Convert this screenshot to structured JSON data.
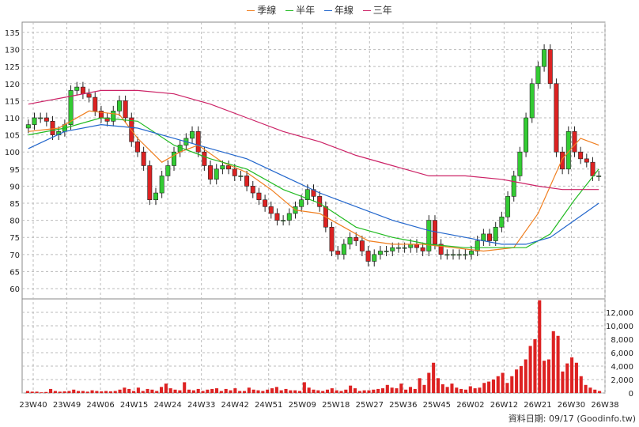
{
  "legend": [
    {
      "label": "季線",
      "color": "#f07f20"
    },
    {
      "label": "半年",
      "color": "#22bb22"
    },
    {
      "label": "年線",
      "color": "#2266cc"
    },
    {
      "label": "三年",
      "color": "#cc2266"
    }
  ],
  "footer": {
    "date_label": "資料日期: 09/17",
    "source": "(Goodinfo.tw)"
  },
  "chart_data": [
    {
      "type": "line",
      "title": "",
      "x_ticks": [
        "23W40",
        "23W49",
        "24W06",
        "24W15",
        "24W24",
        "24W33",
        "24W42",
        "24W51",
        "25W09",
        "25W18",
        "25W27",
        "25W36",
        "25W45",
        "26W02",
        "26W12",
        "26W21",
        "26W30",
        "26W38"
      ],
      "y_ticks": [
        60,
        65,
        70,
        75,
        80,
        85,
        90,
        95,
        100,
        105,
        110,
        115,
        120,
        125,
        130,
        135
      ],
      "ylim": [
        57,
        138
      ],
      "grid": true,
      "candle_close": [
        108,
        110,
        110,
        109,
        105,
        106,
        108,
        118,
        119,
        117,
        116,
        112,
        110,
        109,
        112,
        115,
        110,
        103,
        100,
        96,
        86,
        88,
        93,
        96,
        100,
        102,
        104,
        106,
        100,
        96,
        92,
        95,
        96,
        95,
        93,
        93,
        90,
        88,
        86,
        84,
        82,
        80,
        80,
        82,
        84,
        86,
        89,
        87,
        84,
        78,
        71,
        70,
        73,
        75,
        74,
        71,
        68,
        70,
        71,
        71,
        72,
        72,
        72,
        73,
        72,
        71,
        80,
        73,
        70,
        70,
        70,
        70,
        70,
        71,
        74,
        76,
        74,
        78,
        81,
        87,
        93,
        100,
        110,
        120,
        125,
        130,
        120,
        100,
        95,
        106,
        100,
        98,
        97,
        93,
        93
      ],
      "series": [
        {
          "name": "季線",
          "color": "#f07f20",
          "points": [
            [
              0,
              106
            ],
            [
              5,
              107
            ],
            [
              10,
              112
            ],
            [
              15,
              111
            ],
            [
              18,
              104
            ],
            [
              22,
              97
            ],
            [
              25,
              100
            ],
            [
              28,
              102
            ],
            [
              32,
              97
            ],
            [
              36,
              94
            ],
            [
              40,
              89
            ],
            [
              44,
              83
            ],
            [
              48,
              82
            ],
            [
              52,
              78
            ],
            [
              56,
              74
            ],
            [
              60,
              73
            ],
            [
              65,
              73
            ],
            [
              70,
              72
            ],
            [
              75,
              71
            ],
            [
              80,
              72
            ],
            [
              84,
              82
            ],
            [
              88,
              98
            ],
            [
              91,
              104
            ],
            [
              94,
              102
            ]
          ]
        },
        {
          "name": "半年",
          "color": "#22bb22",
          "points": [
            [
              0,
              105
            ],
            [
              6,
              107
            ],
            [
              12,
              110
            ],
            [
              18,
              109
            ],
            [
              24,
              102
            ],
            [
              30,
              98
            ],
            [
              36,
              95
            ],
            [
              42,
              89
            ],
            [
              48,
              85
            ],
            [
              54,
              78
            ],
            [
              60,
              75
            ],
            [
              66,
              73
            ],
            [
              72,
              72
            ],
            [
              78,
              72
            ],
            [
              82,
              72
            ],
            [
              86,
              76
            ],
            [
              90,
              86
            ],
            [
              94,
              95
            ]
          ]
        },
        {
          "name": "年線",
          "color": "#2266cc",
          "points": [
            [
              0,
              101
            ],
            [
              6,
              106
            ],
            [
              12,
              108
            ],
            [
              18,
              107
            ],
            [
              24,
              104
            ],
            [
              30,
              101
            ],
            [
              36,
              98
            ],
            [
              42,
              93
            ],
            [
              48,
              88
            ],
            [
              54,
              84
            ],
            [
              60,
              80
            ],
            [
              66,
              77
            ],
            [
              72,
              75
            ],
            [
              78,
              73
            ],
            [
              82,
              73
            ],
            [
              86,
              75
            ],
            [
              90,
              80
            ],
            [
              94,
              85
            ]
          ]
        },
        {
          "name": "三年",
          "color": "#cc2266",
          "points": [
            [
              0,
              114
            ],
            [
              6,
              116
            ],
            [
              12,
              118
            ],
            [
              18,
              118
            ],
            [
              24,
              117
            ],
            [
              30,
              114
            ],
            [
              36,
              110
            ],
            [
              42,
              106
            ],
            [
              48,
              103
            ],
            [
              54,
              99
            ],
            [
              60,
              96
            ],
            [
              66,
              93
            ],
            [
              72,
              93
            ],
            [
              78,
              92
            ],
            [
              84,
              90
            ],
            [
              88,
              89
            ],
            [
              94,
              89
            ]
          ]
        }
      ]
    },
    {
      "type": "bar",
      "title": "",
      "y_ticks": [
        0,
        2000,
        4000,
        6000,
        8000,
        10000,
        12000
      ],
      "y_tick_labels": [
        "0",
        "2,000",
        "4,000",
        "6,000",
        "8,000",
        "10,000",
        "12,000"
      ],
      "ylim": [
        0,
        14000
      ],
      "color": "#dd2222",
      "values": [
        300,
        200,
        200,
        100,
        150,
        600,
        300,
        200,
        250,
        300,
        500,
        300,
        300,
        200,
        400,
        300,
        250,
        300,
        250,
        300,
        500,
        800,
        600,
        300,
        800,
        300,
        600,
        500,
        300,
        900,
        1400,
        700,
        500,
        400,
        1600,
        500,
        400,
        600,
        300,
        500,
        600,
        700,
        300,
        600,
        400,
        700,
        300,
        300,
        800,
        500,
        400,
        300,
        500,
        700,
        900,
        400,
        600,
        400,
        400,
        300,
        1600,
        800,
        500,
        400,
        300,
        500,
        700,
        400,
        300,
        500,
        1100,
        700,
        300,
        400,
        400,
        500,
        600,
        700,
        1200,
        800,
        700,
        1400,
        500,
        900,
        600,
        2200,
        1200,
        3000,
        4500,
        2200,
        1300,
        900,
        1400,
        800,
        600,
        500,
        1000,
        700,
        800,
        1500,
        1700,
        2000,
        2500,
        3000,
        1500,
        2500,
        3500,
        4000,
        5000,
        7000,
        8000,
        13800,
        4800,
        5000,
        9200,
        8500,
        3200,
        4400,
        5300,
        4500,
        2500,
        1200,
        800,
        500,
        300
      ]
    }
  ]
}
